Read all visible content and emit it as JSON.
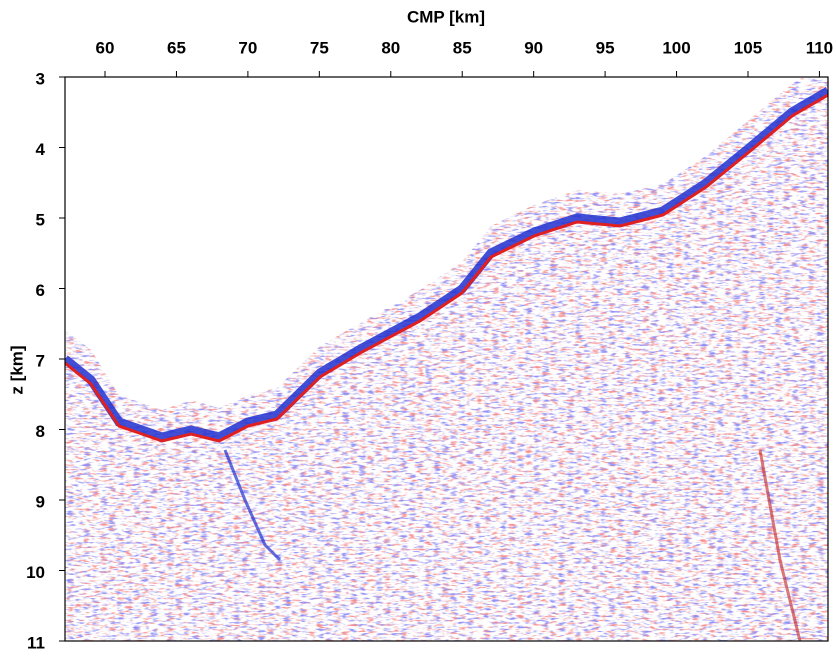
{
  "chart_data": {
    "type": "image",
    "xlabel": "CMP [km]",
    "ylabel": "z [km]",
    "xlim": [
      57.2,
      110.6
    ],
    "xticks": [
      60,
      65,
      70,
      75,
      80,
      85,
      90,
      95,
      100,
      105,
      110
    ],
    "ylim": [
      11,
      3
    ],
    "yticks": [
      3,
      4,
      5,
      6,
      7,
      8,
      9,
      10,
      11
    ],
    "x_axis_position": "top"
  }
}
